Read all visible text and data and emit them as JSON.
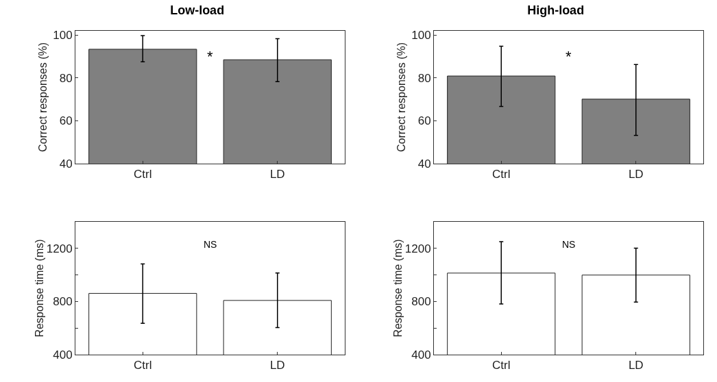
{
  "chart_data": [
    {
      "type": "bar",
      "title": "Low-load",
      "ylabel": "Correct responses (%)",
      "categories": [
        "Ctrl",
        "LD"
      ],
      "values": [
        93.4,
        88.5
      ],
      "errors": [
        [
          87.5,
          99.8
        ],
        [
          78.3,
          98.3
        ]
      ],
      "color": "#808080",
      "ylim": [
        40,
        102
      ],
      "yticks": [
        40,
        60,
        80,
        100
      ],
      "grid": false,
      "annotations": [
        "*"
      ]
    },
    {
      "type": "bar",
      "title": "High-load",
      "ylabel": "Correct responses (%)",
      "categories": [
        "Ctrl",
        "LD"
      ],
      "values": [
        80.9,
        70.1
      ],
      "errors": [
        [
          66.7,
          94.8
        ],
        [
          53.2,
          86.3
        ]
      ],
      "color": "#808080",
      "ylim": [
        40,
        102
      ],
      "yticks": [
        40,
        60,
        80,
        100
      ],
      "grid": false,
      "annotations": [
        "*"
      ]
    },
    {
      "type": "bar",
      "ylabel": "Response time (ms)",
      "categories": [
        "Ctrl",
        "LD"
      ],
      "values": [
        861,
        808
      ],
      "errors": [
        [
          636,
          1083
        ],
        [
          603,
          1015
        ]
      ],
      "color": "#ffffff",
      "ylim": [
        400,
        1400
      ],
      "yticks": [
        400,
        {
          "value": 600,
          "label": null
        },
        800,
        {
          "value": 1000,
          "label": null
        },
        1200,
        {
          "value": 1400,
          "label": null
        }
      ],
      "grid": false,
      "annotations": [
        "NS"
      ]
    },
    {
      "type": "bar",
      "ylabel": "Response time (ms)",
      "categories": [
        "Ctrl",
        "LD"
      ],
      "values": [
        1014,
        999
      ],
      "errors": [
        [
          781,
          1251
        ],
        [
          795,
          1202
        ]
      ],
      "color": "#ffffff",
      "ylim": [
        400,
        1400
      ],
      "yticks": [
        400,
        {
          "value": 600,
          "label": null
        },
        800,
        {
          "value": 1000,
          "label": null
        },
        1200,
        {
          "value": 1400,
          "label": null
        }
      ],
      "grid": false,
      "annotations": [
        "NS"
      ]
    }
  ]
}
